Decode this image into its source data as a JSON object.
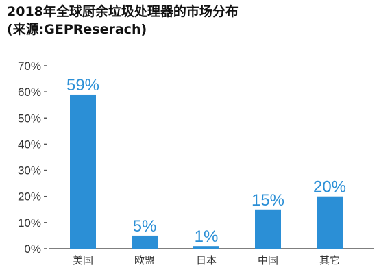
{
  "chart_data": {
    "type": "bar",
    "title": "2018年全球厨余垃圾处理器的市场分布",
    "subtitle": "(来源:GEPReserach)",
    "categories": [
      "美国",
      "欧盟",
      "日本",
      "中国",
      "其它"
    ],
    "values": [
      59,
      5,
      1,
      15,
      20
    ],
    "value_labels": [
      "59%",
      "5%",
      "1%",
      "15%",
      "20%"
    ],
    "y_ticks": [
      "0%",
      "10%",
      "20%",
      "30%",
      "40%",
      "50%",
      "60%",
      "70%"
    ],
    "ylim": [
      0,
      70
    ],
    "xlabel": "",
    "ylabel": "",
    "grid": false,
    "legend": "none",
    "bar_color": "#2b8fd6",
    "label_color": "#2b8fd6",
    "axis_color": "#555555"
  }
}
